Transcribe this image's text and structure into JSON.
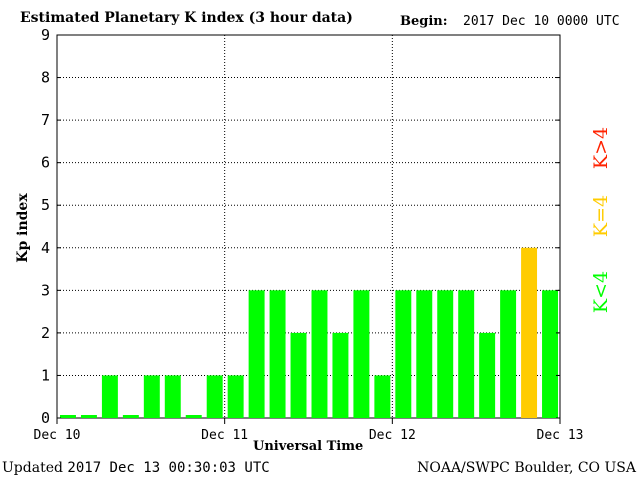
{
  "header": {
    "title": "Estimated Planetary K index (3 hour data)",
    "begin_label": "Begin:",
    "begin_value": "2017 Dec 10 0000 UTC"
  },
  "footer": {
    "updated_label": "Updated",
    "updated_value": "2017 Dec 13 00:30:03 UTC",
    "credit": "NOAA/SWPC Boulder, CO USA"
  },
  "legend": {
    "low": {
      "label": "K<4",
      "color": "#00ff00"
    },
    "mid": {
      "label": "K=4",
      "color": "#ffcc00"
    },
    "high": {
      "label": "K>4",
      "color": "#ff2200"
    }
  },
  "chart_data": {
    "type": "bar",
    "title": "Estimated Planetary K index (3 hour data)",
    "xlabel": "Universal Time",
    "ylabel": "Kp index",
    "ylim": [
      0,
      9
    ],
    "yticks": [
      0,
      1,
      2,
      3,
      4,
      5,
      6,
      7,
      8,
      9
    ],
    "xtick_labels": [
      "Dec 10",
      "Dec 11",
      "Dec 12",
      "Dec 13"
    ],
    "grid": true,
    "values": [
      0,
      0,
      1,
      0,
      1,
      1,
      0,
      1,
      1,
      3,
      3,
      2,
      3,
      2,
      3,
      1,
      3,
      3,
      3,
      3,
      2,
      3,
      4,
      3
    ],
    "colors": {
      "below_4": "#00ff00",
      "equal_4": "#ffcc00",
      "above_4": "#ff2200"
    }
  }
}
